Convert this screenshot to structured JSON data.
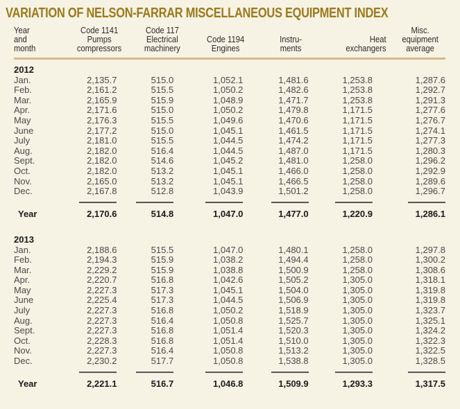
{
  "title": "VARIATION OF NELSON-FARRAR MISCELLANEOUS EQUIPMENT INDEX",
  "colors": {
    "title": "#9a7a1c",
    "background": "#f6f2e4",
    "header_rule": "#d4b98a"
  },
  "columns": [
    "Year and month",
    "Code 1141 Pumps compressors",
    "Code 117 Electrical machinery",
    "Code 1194 Engines",
    "Instru- ments",
    "Heat exchangers",
    "Misc. equipment average"
  ],
  "header": {
    "c0": [
      "Year",
      "and",
      "month"
    ],
    "c1": [
      "Code 1141",
      "Pumps",
      "compressors"
    ],
    "c2": [
      "Code 117",
      "Electrical",
      "machinery"
    ],
    "c3": [
      "Code 1194",
      "Engines"
    ],
    "c4": [
      "Instru-",
      "ments"
    ],
    "c5": [
      "Heat",
      "exchangers"
    ],
    "c6": [
      "Misc.",
      "equipment",
      "average"
    ]
  },
  "years": [
    {
      "year": "2012",
      "rows": [
        [
          "Jan.",
          "2,135.7",
          "515.0",
          "1,052.1",
          "1,481.6",
          "1,253.8",
          "1,287.6"
        ],
        [
          "Feb.",
          "2,161.2",
          "515.5",
          "1,050.2",
          "1,482.6",
          "1,253.8",
          "1,292.7"
        ],
        [
          "Mar.",
          "2,165.9",
          "515.9",
          "1,048.9",
          "1,471.7",
          "1,253.8",
          "1,291.3"
        ],
        [
          "Apr.",
          "2,171.6",
          "515.0",
          "1,050.2",
          "1,479.8",
          "1,171.5",
          "1,277.6"
        ],
        [
          "May",
          "2,176.3",
          "515.5",
          "1,049.6",
          "1,470.6",
          "1,171.5",
          "1,276.7"
        ],
        [
          "June",
          "2,177.2",
          "515.0",
          "1,045.1",
          "1,461.5",
          "1,171.5",
          "1,274.1"
        ],
        [
          "July",
          "2,181.0",
          "515.5",
          "1,044.5",
          "1,474.2",
          "1,171.5",
          "1,277.3"
        ],
        [
          "Aug.",
          "2,182.0",
          "516.4",
          "1,044.5",
          "1,487.0",
          "1,171.5",
          "1,280.3"
        ],
        [
          "Sept.",
          "2,182.0",
          "514.6",
          "1,045.2",
          "1,481.0",
          "1,258.0",
          "1,296.2"
        ],
        [
          "Oct.",
          "2,182.0",
          "513.2",
          "1,045.1",
          "1,466.0",
          "1,258.0",
          "1,292.9"
        ],
        [
          "Nov.",
          "2,165.0",
          "513.2",
          "1,045.1",
          "1,466.5",
          "1,258.0",
          "1,289.6"
        ],
        [
          "Dec.",
          "2,167.8",
          "512.8",
          "1,043.9",
          "1,501.2",
          "1,258.0",
          "1,296.7"
        ]
      ],
      "total": [
        "Year",
        "2,170.6",
        "514.8",
        "1,047.0",
        "1,477.0",
        "1,220.9",
        "1,286.1"
      ]
    },
    {
      "year": "2013",
      "rows": [
        [
          "Jan.",
          "2,188.6",
          "515.5",
          "1,047.0",
          "1,480.1",
          "1,258.0",
          "1,297.8"
        ],
        [
          "Feb.",
          "2,194.3",
          "515.9",
          "1,038.2",
          "1,494.4",
          "1,258.0",
          "1,300.2"
        ],
        [
          "Mar.",
          "2,229.2",
          "515.9",
          "1,038.8",
          "1,500.9",
          "1,258.0",
          "1,308.6"
        ],
        [
          "Apr.",
          "2,220.7",
          "516.8",
          "1,042.6",
          "1,505.2",
          "1,305.0",
          "1,318.1"
        ],
        [
          "May",
          "2,227.3",
          "517.3",
          "1,045.1",
          "1,504.0",
          "1,305.0",
          "1,319.8"
        ],
        [
          "June",
          "2,225.4",
          "517.3",
          "1,044.5",
          "1,506.9",
          "1,305.0",
          "1,319.8"
        ],
        [
          "July",
          "2,227.3",
          "516.8",
          "1,050.2",
          "1,518.9",
          "1,305.0",
          "1,323.7"
        ],
        [
          "Aug.",
          "2,227.3",
          "516.4",
          "1,050.8",
          "1,525.7",
          "1,305.0",
          "1,325.1"
        ],
        [
          "Sept.",
          "2,227.3",
          "516.8",
          "1,051.4",
          "1,520.3",
          "1,305.0",
          "1,324.2"
        ],
        [
          "Oct.",
          "2,228.3",
          "516.8",
          "1,051.4",
          "1,510.0",
          "1,305.0",
          "1,322.3"
        ],
        [
          "Nov.",
          "2,227.3",
          "516.4",
          "1,050.8",
          "1,513.2",
          "1,305.0",
          "1,322.5"
        ],
        [
          "Dec.",
          "2,230.2",
          "517.7",
          "1,050.8",
          "1,538.8",
          "1,305.0",
          "1,328.5"
        ]
      ],
      "total": [
        "Year",
        "2,221.1",
        "516.7",
        "1,046.8",
        "1,509.9",
        "1,293.3",
        "1,317.5"
      ]
    }
  ]
}
